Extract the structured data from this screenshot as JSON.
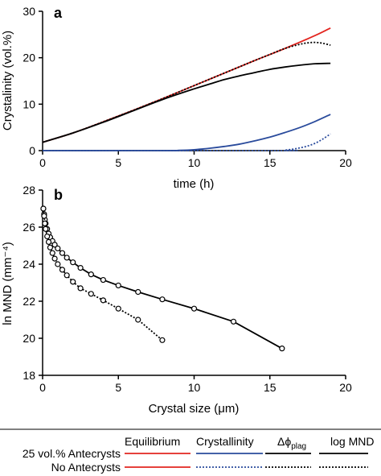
{
  "chart_data": [
    {
      "panel": "a",
      "type": "line",
      "xlabel": "time (h)",
      "ylabel": "Crystalinity (vol.%)",
      "xlim": [
        0,
        20
      ],
      "ylim": [
        0,
        30
      ],
      "xticks": [
        "0",
        "5",
        "10",
        "15",
        "20"
      ],
      "yticks": [
        "0",
        "10",
        "20",
        "30"
      ],
      "series": [
        {
          "color": "#e32620",
          "style": "solid",
          "x": [
            0,
            2,
            4,
            6,
            8,
            10,
            12,
            14,
            16,
            18,
            19
          ],
          "y": [
            1.8,
            3.8,
            6.2,
            8.7,
            11.3,
            14.0,
            16.7,
            19.4,
            22.0,
            24.8,
            26.4
          ]
        },
        {
          "color": "#000000",
          "style": "dotted",
          "x": [
            0,
            2,
            4,
            6,
            8,
            10,
            12,
            14,
            15,
            16,
            17,
            17.5,
            18,
            18.5,
            19
          ],
          "y": [
            1.8,
            3.8,
            6.2,
            8.7,
            11.3,
            14.0,
            16.7,
            19.4,
            20.7,
            22.0,
            22.9,
            23.2,
            23.3,
            23.1,
            22.7
          ]
        },
        {
          "color": "#000000",
          "style": "solid",
          "x": [
            0,
            2,
            4,
            6,
            8,
            10,
            11,
            12,
            13,
            14,
            15,
            16,
            17,
            18,
            19
          ],
          "y": [
            1.8,
            3.8,
            6.1,
            8.6,
            11.1,
            13.3,
            14.3,
            15.3,
            16.1,
            16.8,
            17.5,
            18.0,
            18.4,
            18.7,
            18.8
          ]
        },
        {
          "color": "#2a4b9c",
          "style": "solid",
          "x": [
            0,
            8,
            9,
            10,
            11,
            12,
            13,
            14,
            15,
            16,
            17,
            18,
            19
          ],
          "y": [
            0,
            0,
            0.05,
            0.2,
            0.5,
            0.9,
            1.4,
            2.1,
            2.9,
            3.9,
            5.0,
            6.3,
            7.8
          ]
        },
        {
          "color": "#2a4b9c",
          "style": "dotted",
          "x": [
            0,
            15.5,
            16,
            16.5,
            17,
            17.5,
            18,
            18.5,
            19
          ],
          "y": [
            0,
            0,
            0.1,
            0.3,
            0.6,
            1.0,
            1.6,
            2.5,
            3.6
          ]
        }
      ]
    },
    {
      "panel": "b",
      "type": "line",
      "xlabel": "Crystal size (μm)",
      "ylabel": "ln MND (mm⁻⁴)",
      "xlim": [
        0,
        20
      ],
      "ylim": [
        18,
        28
      ],
      "xticks": [
        "0",
        "5",
        "10",
        "15",
        "20"
      ],
      "yticks": [
        "18",
        "20",
        "22",
        "24",
        "26",
        "28"
      ],
      "series": [
        {
          "color": "#000000",
          "style": "solid",
          "markers": true,
          "x": [
            0.05,
            0.1,
            0.15,
            0.2,
            0.3,
            0.4,
            0.5,
            0.65,
            0.8,
            1.0,
            1.3,
            1.6,
            2.0,
            2.5,
            3.2,
            4.0,
            5.0,
            6.3,
            7.9,
            10.0,
            12.6,
            15.8
          ],
          "y": [
            27.0,
            26.7,
            26.4,
            26.2,
            25.9,
            25.65,
            25.45,
            25.25,
            25.05,
            24.85,
            24.6,
            24.35,
            24.1,
            23.8,
            23.45,
            23.15,
            22.85,
            22.5,
            22.1,
            21.6,
            20.9,
            19.45
          ]
        },
        {
          "color": "#000000",
          "style": "dotted",
          "markers": true,
          "x": [
            0.05,
            0.1,
            0.15,
            0.2,
            0.3,
            0.4,
            0.5,
            0.65,
            0.8,
            1.0,
            1.3,
            1.6,
            2.0,
            2.5,
            3.2,
            4.0,
            5.0,
            6.3,
            7.9
          ],
          "y": [
            27.0,
            26.6,
            26.2,
            25.9,
            25.5,
            25.2,
            24.9,
            24.6,
            24.3,
            24.0,
            23.7,
            23.4,
            23.05,
            22.7,
            22.4,
            22.05,
            21.6,
            21.0,
            19.9
          ]
        }
      ]
    }
  ],
  "panel_labels": {
    "a": "a",
    "b": "b"
  },
  "legend": {
    "col_headers": {
      "equilibrium": "Equilibrium",
      "crystallinity": "Crystallinity",
      "dphi_main": "Δϕ",
      "dphi_sub": "plag",
      "logmnd": "log MND"
    },
    "rows": [
      {
        "label": "25 vol.% Antecrysts",
        "styles": [
          "solid",
          "solid",
          "solid",
          "solid"
        ]
      },
      {
        "label": "No Antecrysts",
        "styles": [
          "solid",
          "dotted",
          "dotted",
          "dotted"
        ]
      }
    ],
    "colors": [
      "#e32620",
      "#2a4b9c",
      "#000000",
      "#000000"
    ]
  }
}
